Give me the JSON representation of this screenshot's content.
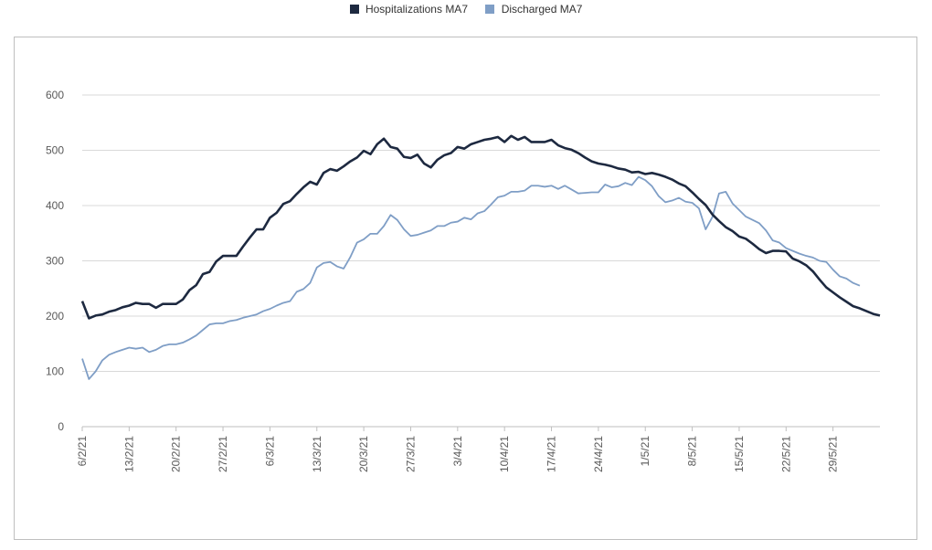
{
  "chart_data": {
    "type": "line",
    "title": "",
    "xlabel": "",
    "ylabel": "",
    "ylim": [
      0,
      600
    ],
    "yticks": [
      0,
      100,
      200,
      300,
      400,
      500,
      600
    ],
    "grid": true,
    "legend_position": "top-center",
    "x_start": "6/2/21",
    "x_tick_labels": [
      "6/2/21",
      "13/2/21",
      "20/2/21",
      "27/2/21",
      "6/3/21",
      "13/3/21",
      "20/3/21",
      "27/3/21",
      "3/4/21",
      "10/4/21",
      "17/4/21",
      "24/4/21",
      "1/5/21",
      "8/5/21",
      "15/5/21",
      "22/5/21",
      "29/5/21"
    ],
    "legend": [
      {
        "name": "Hospitalizations MA7",
        "color": "#1d2940"
      },
      {
        "name": "Discharged MA7",
        "color": "#7f9ec6"
      }
    ],
    "series": [
      {
        "name": "Hospitalizations MA7",
        "color": "#1d2940",
        "values": [
          227,
          196,
          201,
          203,
          208,
          211,
          216,
          219,
          224,
          222,
          222,
          215,
          222,
          222,
          222,
          230,
          247,
          256,
          276,
          280,
          299,
          309,
          309,
          309,
          326,
          342,
          357,
          357,
          378,
          387,
          403,
          408,
          421,
          433,
          443,
          438,
          459,
          466,
          463,
          471,
          480,
          487,
          499,
          493,
          511,
          521,
          506,
          503,
          488,
          486,
          492,
          476,
          469,
          483,
          491,
          495,
          506,
          503,
          511,
          515,
          519,
          521,
          524,
          515,
          526,
          519,
          524,
          515,
          515,
          515,
          519,
          509,
          504,
          501,
          495,
          487,
          480,
          476,
          474,
          471,
          467,
          465,
          460,
          461,
          457,
          459,
          456,
          452,
          447,
          440,
          435,
          424,
          412,
          401,
          384,
          372,
          361,
          354,
          344,
          340,
          331,
          321,
          314,
          318,
          318,
          317,
          304,
          299,
          292,
          281,
          266,
          252,
          243,
          234,
          226,
          218,
          214,
          209,
          204,
          201
        ]
      },
      {
        "name": "Discharged MA7",
        "color": "#7f9ec6",
        "values": [
          123,
          86,
          100,
          120,
          130,
          135,
          139,
          143,
          141,
          143,
          135,
          139,
          146,
          149,
          149,
          152,
          158,
          165,
          175,
          185,
          187,
          187,
          191,
          193,
          197,
          200,
          203,
          209,
          213,
          219,
          224,
          227,
          244,
          249,
          260,
          288,
          296,
          298,
          290,
          286,
          307,
          333,
          339,
          349,
          349,
          363,
          383,
          374,
          357,
          345,
          347,
          351,
          355,
          363,
          363,
          369,
          371,
          378,
          375,
          386,
          390,
          402,
          415,
          418,
          425,
          425,
          427,
          436,
          436,
          434,
          436,
          430,
          436,
          429,
          422,
          423,
          424,
          424,
          438,
          433,
          435,
          441,
          437,
          452,
          446,
          435,
          417,
          406,
          409,
          414,
          407,
          405,
          395,
          357,
          379,
          422,
          425,
          404,
          392,
          380,
          374,
          368,
          355,
          337,
          333,
          323,
          318,
          313,
          309,
          306,
          300,
          298,
          284,
          272,
          268,
          260,
          255
        ]
      }
    ]
  }
}
